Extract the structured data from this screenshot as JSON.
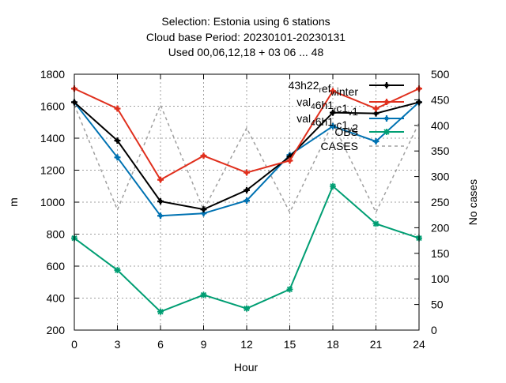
{
  "title_lines": [
    "Selection: Estonia using     6 stations",
    "Cloud base   Period: 20230101-20230131",
    "Used  00,06,12,18  + 03 06 ... 48"
  ],
  "chart_data": {
    "type": "line",
    "xlabel": "Hour",
    "ylabel": "m",
    "y2label": "No cases",
    "x": [
      0,
      3,
      6,
      9,
      12,
      15,
      18,
      21,
      24
    ],
    "xlim": [
      0,
      24
    ],
    "xticks": [
      0,
      3,
      6,
      9,
      12,
      15,
      18,
      21,
      24
    ],
    "ylim": [
      200,
      1800
    ],
    "yticks": [
      200,
      400,
      600,
      800,
      1000,
      1200,
      1400,
      1600,
      1800
    ],
    "y2lim": [
      0,
      500
    ],
    "y2ticks": [
      0,
      50,
      100,
      150,
      200,
      250,
      300,
      350,
      400,
      450,
      500
    ],
    "grid": true,
    "legend_position": "top-right",
    "series": [
      {
        "name": "43h22_ref_inter",
        "label_parts": [
          {
            "t": "43h22"
          },
          {
            "t": "r",
            "sub": true
          },
          {
            "t": "ef"
          },
          {
            "t": "w",
            "sub": true
          },
          {
            "t": "inter"
          }
        ],
        "color": "#000000",
        "marker": "plus",
        "axis": "y1",
        "dashed": false,
        "values": [
          1625,
          1385,
          1005,
          955,
          1075,
          1285,
          1560,
          1555,
          1625
        ]
      },
      {
        "name": "val_4 6h1_rc1_v 1",
        "label_parts": [
          {
            "t": "val"
          },
          {
            "t": "4",
            "sub": true
          },
          {
            "t": "6h1"
          },
          {
            "t": "r",
            "sub": true
          },
          {
            "t": "c1"
          },
          {
            "t": "v",
            "sub": true
          },
          {
            "t": "1"
          }
        ],
        "color": "#e0301e",
        "marker": "plus",
        "axis": "y1",
        "dashed": false,
        "values": [
          1710,
          1585,
          1140,
          1290,
          1185,
          1260,
          1695,
          1585,
          1710
        ]
      },
      {
        "name": "val_4 6h1_rc1_v 2",
        "label_parts": [
          {
            "t": "val"
          },
          {
            "t": "4",
            "sub": true
          },
          {
            "t": "6h1"
          },
          {
            "t": "r",
            "sub": true
          },
          {
            "t": "c1"
          },
          {
            "t": "v",
            "sub": true
          },
          {
            "t": "2"
          }
        ],
        "color": "#0072b2",
        "marker": "plus",
        "axis": "y1",
        "dashed": false,
        "values": [
          1625,
          1280,
          915,
          930,
          1010,
          1295,
          1475,
          1380,
          1625
        ]
      },
      {
        "name": "OBS",
        "label_parts": [
          {
            "t": "OBS"
          }
        ],
        "color": "#009e73",
        "marker": "star",
        "axis": "y1",
        "dashed": false,
        "values": [
          775,
          575,
          315,
          420,
          335,
          455,
          1100,
          865,
          775
        ]
      },
      {
        "name": "CASES",
        "label_parts": [
          {
            "t": "CASES"
          }
        ],
        "color": "#a0a0a0",
        "marker": "none",
        "axis": "y2",
        "dashed": true,
        "values": [
          440,
          235,
          440,
          235,
          395,
          230,
          405,
          230,
          405
        ]
      }
    ]
  }
}
